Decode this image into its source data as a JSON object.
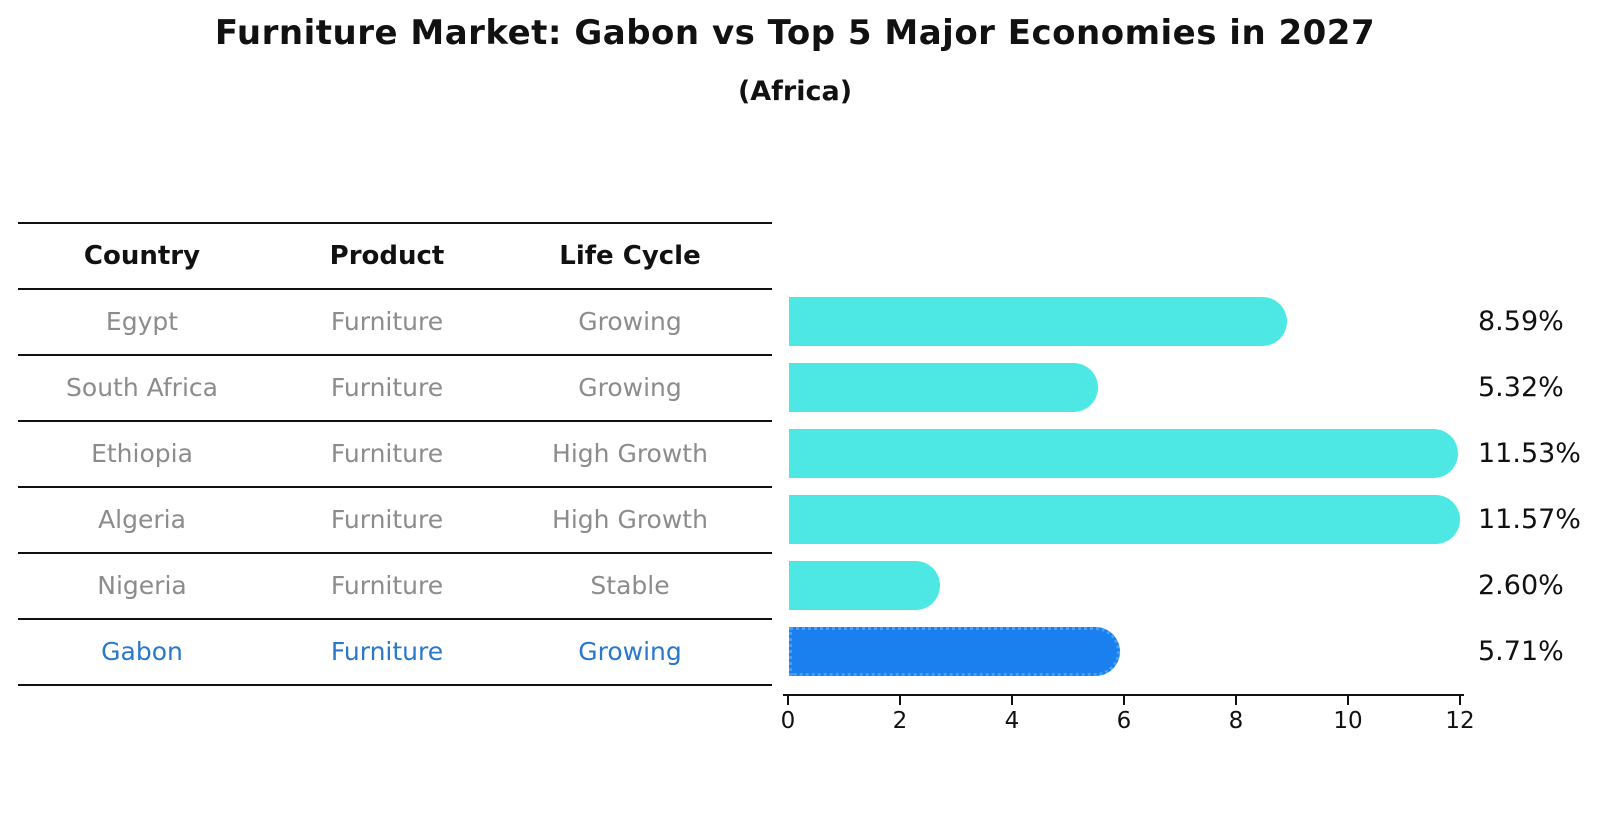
{
  "title": "Furniture Market: Gabon vs Top 5 Major Economies in 2027",
  "subtitle": "(Africa)",
  "table": {
    "headers": {
      "country": "Country",
      "product": "Product",
      "life_cycle": "Life Cycle"
    },
    "rows": [
      {
        "country": "Egypt",
        "product": "Furniture",
        "life_cycle": "Growing"
      },
      {
        "country": "South Africa",
        "product": "Furniture",
        "life_cycle": "Growing"
      },
      {
        "country": "Ethiopia",
        "product": "Furniture",
        "life_cycle": "High Growth"
      },
      {
        "country": "Algeria",
        "product": "Furniture",
        "life_cycle": "High Growth"
      },
      {
        "country": "Nigeria",
        "product": "Furniture",
        "life_cycle": "Stable"
      },
      {
        "country": "Gabon",
        "product": "Furniture",
        "life_cycle": "Growing"
      }
    ],
    "highlight_row_index": 5
  },
  "chart_data": {
    "type": "bar",
    "orientation": "horizontal",
    "title": "Furniture Market: Gabon vs Top 5 Major Economies in 2027",
    "subtitle": "(Africa)",
    "categories": [
      "Egypt",
      "South Africa",
      "Ethiopia",
      "Algeria",
      "Nigeria",
      "Gabon"
    ],
    "values": [
      8.59,
      5.32,
      11.53,
      11.57,
      2.6,
      5.71
    ],
    "value_labels": [
      "8.59%",
      "5.32%",
      "11.53%",
      "11.57%",
      "2.60%",
      "5.71%"
    ],
    "xlim": [
      0,
      12
    ],
    "xticks": [
      "0",
      "2",
      "4",
      "6",
      "8",
      "10",
      "12"
    ],
    "grid": false,
    "legend": "none",
    "bar_color": "#4de8e4",
    "highlight_bar_color": "#1a80f0",
    "highlight_index": 5
  },
  "colors": {
    "heading_text": "#111111",
    "row_text": "#8c8c8c",
    "highlight_text": "#2878cc",
    "axis": "#111111"
  }
}
